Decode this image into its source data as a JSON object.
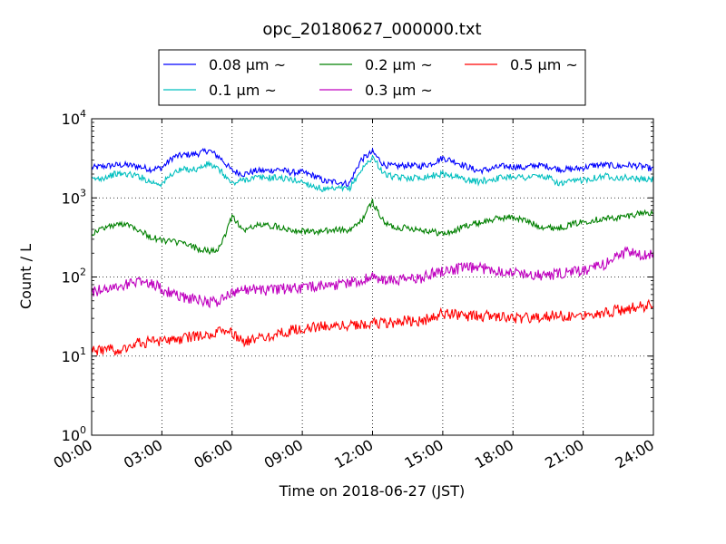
{
  "chart_data": {
    "type": "line",
    "title": "opc_20180627_000000.txt",
    "xlabel": "Time on 2018-06-27 (JST)",
    "ylabel": "Count / L",
    "yscale": "log",
    "xlim": [
      "00:00",
      "24:00"
    ],
    "ylim": [
      1,
      10000
    ],
    "grid": true,
    "legend_position": "top-center",
    "x_ticks": [
      "00:00",
      "03:00",
      "06:00",
      "09:00",
      "12:00",
      "15:00",
      "18:00",
      "21:00",
      "24:00"
    ],
    "y_ticks": [
      {
        "value": 1,
        "base": "10",
        "exp": "0"
      },
      {
        "value": 10,
        "base": "10",
        "exp": "1"
      },
      {
        "value": 100,
        "base": "10",
        "exp": "2"
      },
      {
        "value": 1000,
        "base": "10",
        "exp": "3"
      },
      {
        "value": 10000,
        "base": "10",
        "exp": "4"
      }
    ],
    "x_hours": [
      0,
      0.5,
      1,
      1.5,
      2,
      2.5,
      3,
      3.5,
      4,
      4.5,
      5,
      5.5,
      6,
      6.5,
      7,
      7.5,
      8,
      8.5,
      9,
      9.5,
      10,
      10.5,
      11,
      11.5,
      12,
      12.5,
      13,
      13.5,
      14,
      14.5,
      15,
      15.5,
      16,
      16.5,
      17,
      17.5,
      18,
      18.5,
      19,
      19.5,
      20,
      20.5,
      21,
      21.5,
      22,
      22.5,
      23,
      23.5,
      24
    ],
    "series": [
      {
        "name": "0.08 μm ~",
        "color": "#0000ff",
        "values": [
          2400,
          2500,
          2600,
          2600,
          2500,
          2300,
          2400,
          3300,
          3500,
          3600,
          4000,
          3200,
          2200,
          2000,
          2200,
          2200,
          2300,
          2100,
          2100,
          1900,
          1600,
          1600,
          1500,
          3000,
          3800,
          2600,
          2500,
          2600,
          2500,
          2700,
          3200,
          2900,
          2500,
          2200,
          2300,
          2500,
          2500,
          2400,
          2600,
          2500,
          2300,
          2300,
          2400,
          2600,
          2600,
          2500,
          2600,
          2500,
          2300
        ]
      },
      {
        "name": "0.1 μm ~",
        "color": "#00bfbf",
        "values": [
          1700,
          1800,
          2000,
          2000,
          1900,
          1600,
          1500,
          2100,
          2300,
          2300,
          2700,
          2200,
          1500,
          1700,
          1800,
          1800,
          1800,
          1700,
          1600,
          1400,
          1250,
          1300,
          1300,
          2200,
          3300,
          2000,
          1800,
          1800,
          1800,
          1900,
          2000,
          1900,
          1700,
          1600,
          1700,
          1800,
          1900,
          1800,
          1900,
          1800,
          1500,
          1600,
          1700,
          1800,
          1900,
          1800,
          1800,
          1700,
          1700
        ]
      },
      {
        "name": "0.2 μm ~",
        "color": "#008000",
        "values": [
          350,
          420,
          450,
          480,
          400,
          320,
          290,
          280,
          260,
          230,
          210,
          230,
          600,
          380,
          450,
          450,
          430,
          400,
          380,
          370,
          380,
          400,
          380,
          500,
          900,
          480,
          420,
          420,
          400,
          380,
          350,
          380,
          450,
          480,
          520,
          560,
          570,
          520,
          450,
          420,
          420,
          460,
          500,
          530,
          550,
          560,
          600,
          650,
          650
        ]
      },
      {
        "name": "0.3 μm ~",
        "color": "#bf00bf",
        "values": [
          65,
          70,
          75,
          80,
          90,
          85,
          70,
          60,
          55,
          52,
          48,
          50,
          65,
          70,
          70,
          68,
          70,
          72,
          72,
          75,
          80,
          80,
          85,
          90,
          100,
          90,
          90,
          95,
          95,
          110,
          120,
          125,
          130,
          130,
          125,
          120,
          115,
          110,
          105,
          105,
          110,
          115,
          120,
          130,
          150,
          190,
          210,
          180,
          200
        ]
      },
      {
        "name": "0.5 μm ~",
        "color": "#ff0000",
        "values": [
          12,
          12,
          12,
          13,
          15,
          15,
          15,
          16,
          17,
          18,
          18,
          20,
          20,
          15,
          16,
          18,
          19,
          21,
          22,
          23,
          24,
          24,
          25,
          25,
          26,
          26,
          27,
          28,
          28,
          30,
          35,
          33,
          32,
          32,
          32,
          32,
          30,
          30,
          31,
          32,
          32,
          33,
          34,
          35,
          36,
          38,
          40,
          42,
          45
        ]
      }
    ]
  }
}
